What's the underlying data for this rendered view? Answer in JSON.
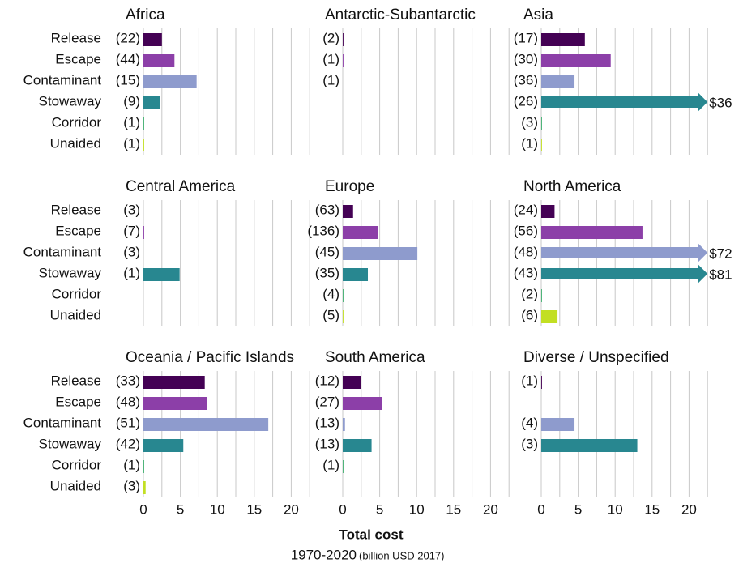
{
  "categories": [
    "Release",
    "Escape",
    "Contaminant",
    "Stowaway",
    "Corridor",
    "Unaided"
  ],
  "colors": [
    "#440154",
    "#8c3fa8",
    "#8e9bcd",
    "#288790",
    "#3fae6f",
    "#c2df23"
  ],
  "xlabel": "Total cost",
  "xlabel_period": "1970-2020",
  "xlabel_unit": "(billion USD 2017)",
  "chart_data": [
    {
      "type": "bar",
      "title": "Africa",
      "values": [
        2.5,
        4.2,
        7.2,
        2.3,
        0.1,
        0.1
      ],
      "counts": [
        "(22)",
        "(44)",
        "(15)",
        "(9)",
        "(1)",
        "(1)"
      ],
      "value_labels": [
        null,
        null,
        null,
        null,
        null,
        null
      ],
      "xlim": [
        0,
        22.5
      ],
      "xticks": [
        0,
        5,
        10,
        15,
        20
      ],
      "minor_xticks": [
        2.5,
        7.5,
        12.5,
        17.5,
        22.5
      ]
    },
    {
      "type": "bar",
      "title": "Antarctic-Subantarctic",
      "values": [
        0.1,
        0.1,
        0,
        null,
        null,
        null
      ],
      "counts": [
        "(2)",
        "(1)",
        "(1)",
        null,
        null,
        null
      ],
      "value_labels": [
        null,
        null,
        null,
        null,
        null,
        null
      ],
      "xlim": [
        0,
        22.5
      ],
      "xticks": [
        0,
        5,
        10,
        15,
        20
      ],
      "minor_xticks": [
        2.5,
        7.5,
        12.5,
        17.5,
        22.5
      ]
    },
    {
      "type": "bar",
      "title": "Asia",
      "values": [
        5.9,
        9.4,
        4.5,
        36,
        0.1,
        0.1
      ],
      "counts": [
        "(17)",
        "(30)",
        "(36)",
        "(26)",
        "(3)",
        "(1)"
      ],
      "value_labels": [
        null,
        null,
        null,
        "$36",
        null,
        null
      ],
      "xlim": [
        0,
        22.5
      ],
      "xticks": [
        0,
        5,
        10,
        15,
        20
      ],
      "minor_xticks": [
        2.5,
        7.5,
        12.5,
        17.5,
        22.5
      ]
    },
    {
      "type": "bar",
      "title": "Central America",
      "values": [
        0,
        0.1,
        0,
        4.9,
        null,
        null
      ],
      "counts": [
        "(3)",
        "(7)",
        "(3)",
        "(1)",
        null,
        null
      ],
      "value_labels": [
        null,
        null,
        null,
        null,
        null,
        null
      ],
      "xlim": [
        0,
        22.5
      ],
      "xticks": [
        0,
        5,
        10,
        15,
        20
      ],
      "minor_xticks": [
        2.5,
        7.5,
        12.5,
        17.5,
        22.5
      ]
    },
    {
      "type": "bar",
      "title": "Europe",
      "values": [
        1.4,
        4.8,
        10.1,
        3.4,
        0.1,
        0.1
      ],
      "counts": [
        "(63)",
        "(136)",
        "(45)",
        "(35)",
        "(4)",
        "(5)"
      ],
      "value_labels": [
        null,
        null,
        null,
        null,
        null,
        null
      ],
      "xlim": [
        0,
        22.5
      ],
      "xticks": [
        0,
        5,
        10,
        15,
        20
      ],
      "minor_xticks": [
        2.5,
        7.5,
        12.5,
        17.5,
        22.5
      ]
    },
    {
      "type": "bar",
      "title": "North America",
      "values": [
        1.8,
        13.7,
        72,
        81,
        0.1,
        2.2
      ],
      "counts": [
        "(24)",
        "(56)",
        "(48)",
        "(43)",
        "(2)",
        "(6)"
      ],
      "value_labels": [
        null,
        null,
        "$72",
        "$81",
        null,
        null
      ],
      "xlim": [
        0,
        22.5
      ],
      "xticks": [
        0,
        5,
        10,
        15,
        20
      ],
      "minor_xticks": [
        2.5,
        7.5,
        12.5,
        17.5,
        22.5
      ]
    },
    {
      "type": "bar",
      "title": "Oceania / Pacific Islands",
      "values": [
        8.3,
        8.6,
        16.9,
        5.4,
        0.1,
        0.3
      ],
      "counts": [
        "(33)",
        "(48)",
        "(51)",
        "(42)",
        "(1)",
        "(3)"
      ],
      "value_labels": [
        null,
        null,
        null,
        null,
        null,
        null
      ],
      "xlim": [
        0,
        22.5
      ],
      "xticks": [
        0,
        5,
        10,
        15,
        20
      ],
      "minor_xticks": [
        2.5,
        7.5,
        12.5,
        17.5,
        22.5
      ]
    },
    {
      "type": "bar",
      "title": "South America",
      "values": [
        2.5,
        5.3,
        0.3,
        3.9,
        0.1,
        null
      ],
      "counts": [
        "(12)",
        "(27)",
        "(13)",
        "(13)",
        "(1)",
        null
      ],
      "value_labels": [
        null,
        null,
        null,
        null,
        null,
        null
      ],
      "xlim": [
        0,
        22.5
      ],
      "xticks": [
        0,
        5,
        10,
        15,
        20
      ],
      "minor_xticks": [
        2.5,
        7.5,
        12.5,
        17.5,
        22.5
      ]
    },
    {
      "type": "bar",
      "title": "Diverse / Unspecified",
      "values": [
        0.1,
        null,
        4.5,
        13,
        null,
        null
      ],
      "counts": [
        "(1)",
        null,
        "(4)",
        "(3)",
        null,
        null
      ],
      "value_labels": [
        null,
        null,
        null,
        null,
        null,
        null
      ],
      "xlim": [
        0,
        22.5
      ],
      "xticks": [
        0,
        5,
        10,
        15,
        20
      ],
      "minor_xticks": [
        2.5,
        7.5,
        12.5,
        17.5,
        22.5
      ]
    }
  ]
}
